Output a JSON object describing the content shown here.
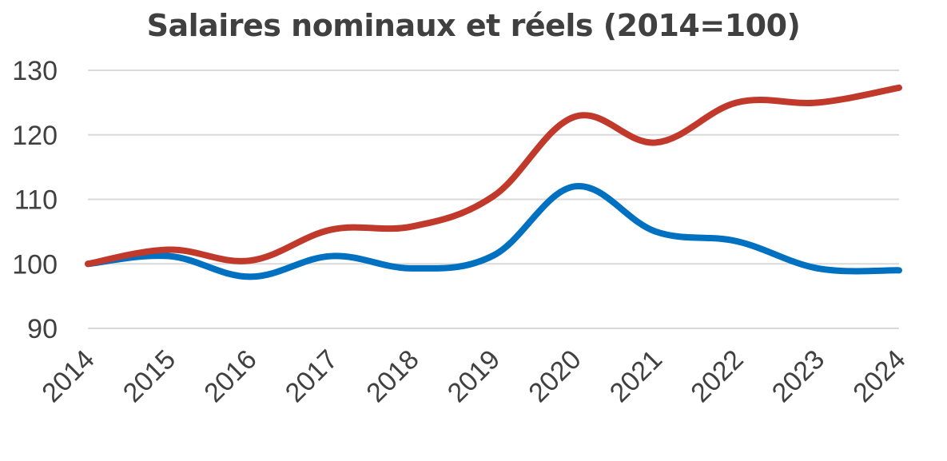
{
  "chart_data": {
    "type": "line",
    "title": "Salaires nominaux et réels (2014=100)",
    "xlabel": "",
    "ylabel": "",
    "x": [
      "2014",
      "2015",
      "2016",
      "2017",
      "2018",
      "2019",
      "2020",
      "2021",
      "2022",
      "2023",
      "2024"
    ],
    "yticks": [
      "90",
      "100",
      "110",
      "120",
      "130"
    ],
    "ylim": [
      90,
      130
    ],
    "grid": true,
    "legend": "none",
    "series": [
      {
        "color": "#c0392b",
        "values": [
          100,
          102.2,
          100.5,
          105.3,
          105.8,
          110.5,
          122.8,
          118.8,
          125.0,
          125.0,
          127.3
        ]
      },
      {
        "color": "#0070c0",
        "values": [
          100,
          101.2,
          98.0,
          101.2,
          99.3,
          101.3,
          112.0,
          105.0,
          103.5,
          99.3,
          99.0
        ]
      }
    ]
  }
}
